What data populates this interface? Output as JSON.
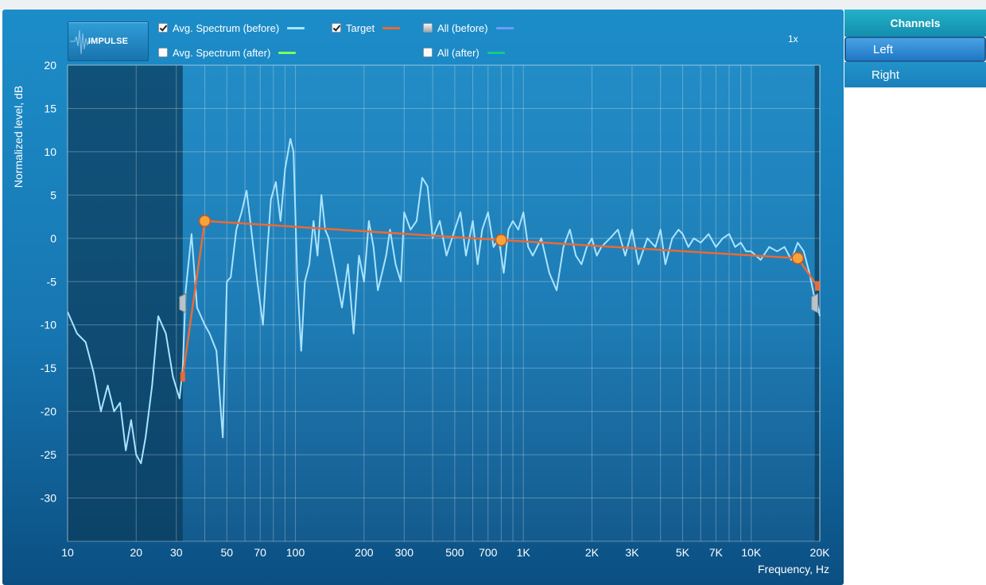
{
  "legend": {
    "impulse_label": "IMPULSE",
    "items": [
      {
        "label": "Avg. Spectrum (before)",
        "checked": true,
        "color": "#a9e4ff"
      },
      {
        "label": "Target",
        "checked": true,
        "color": "#ea6a35"
      },
      {
        "label": "All (before)",
        "checked": "partial",
        "color": "#6f9bff"
      },
      {
        "label": "Avg. Spectrum (after)",
        "checked": false,
        "color": "#7dff57"
      },
      {
        "label": "All (after)",
        "checked": false,
        "color": "#14c98c"
      }
    ],
    "zoom": "1x"
  },
  "channels": {
    "title": "Channels",
    "items": [
      {
        "label": "Left",
        "selected": true
      },
      {
        "label": "Right",
        "selected": false
      }
    ]
  },
  "colors": {
    "spectrum": "#a9e4ff",
    "target": "#ea6a35",
    "target_point": "#f7a23b",
    "shaded_region": "#0a3a5a"
  },
  "chart_data": {
    "type": "line",
    "xlabel": "Frequency, Hz",
    "ylabel": "Normalized level, dB",
    "xscale": "log",
    "xlim": [
      10,
      20000
    ],
    "ylim": [
      -35,
      20
    ],
    "grid": true,
    "x_tick_labels": [
      {
        "value": 10,
        "label": "10"
      },
      {
        "value": 20,
        "label": "20"
      },
      {
        "value": 30,
        "label": "30"
      },
      {
        "value": 50,
        "label": "50"
      },
      {
        "value": 70,
        "label": "70"
      },
      {
        "value": 100,
        "label": "100"
      },
      {
        "value": 200,
        "label": "200"
      },
      {
        "value": 300,
        "label": "300"
      },
      {
        "value": 500,
        "label": "500"
      },
      {
        "value": 700,
        "label": "700"
      },
      {
        "value": 1000,
        "label": "1K"
      },
      {
        "value": 2000,
        "label": "2K"
      },
      {
        "value": 3000,
        "label": "3K"
      },
      {
        "value": 5000,
        "label": "5K"
      },
      {
        "value": 7000,
        "label": "7K"
      },
      {
        "value": 10000,
        "label": "10K"
      },
      {
        "value": 20000,
        "label": "20K"
      }
    ],
    "y_ticks": [
      20,
      15,
      10,
      5,
      0,
      -5,
      -10,
      -15,
      -20,
      -25,
      -30
    ],
    "excluded_ranges": [
      [
        10,
        32
      ],
      [
        19000,
        20000
      ]
    ],
    "series": [
      {
        "name": "Avg. Spectrum (before)",
        "points": [
          [
            10,
            -8.5
          ],
          [
            11,
            -11
          ],
          [
            12,
            -12
          ],
          [
            13,
            -15.5
          ],
          [
            14,
            -20
          ],
          [
            15,
            -17
          ],
          [
            16,
            -20
          ],
          [
            17,
            -19
          ],
          [
            18,
            -24.5
          ],
          [
            19,
            -21
          ],
          [
            20,
            -25
          ],
          [
            21,
            -26
          ],
          [
            22,
            -23
          ],
          [
            23.5,
            -17
          ],
          [
            25,
            -9
          ],
          [
            27,
            -11
          ],
          [
            29,
            -16
          ],
          [
            31,
            -18.5
          ],
          [
            32,
            -15
          ],
          [
            33,
            -6
          ],
          [
            35,
            0.5
          ],
          [
            37,
            -8
          ],
          [
            40,
            -10
          ],
          [
            42,
            -11
          ],
          [
            45,
            -13
          ],
          [
            48,
            -23
          ],
          [
            50,
            -5
          ],
          [
            52,
            -4.5
          ],
          [
            55,
            1
          ],
          [
            58,
            3
          ],
          [
            61,
            5.5
          ],
          [
            64,
            1
          ],
          [
            68,
            -5
          ],
          [
            72,
            -10
          ],
          [
            75,
            -2
          ],
          [
            78,
            4.5
          ],
          [
            82,
            6.5
          ],
          [
            86,
            2
          ],
          [
            90,
            8
          ],
          [
            95,
            11.5
          ],
          [
            98,
            10
          ],
          [
            102,
            -5
          ],
          [
            106,
            -13
          ],
          [
            110,
            -5
          ],
          [
            115,
            -3
          ],
          [
            120,
            2
          ],
          [
            125,
            -2
          ],
          [
            130,
            5
          ],
          [
            135,
            1
          ],
          [
            140,
            0
          ],
          [
            150,
            -4
          ],
          [
            160,
            -8
          ],
          [
            170,
            -3
          ],
          [
            180,
            -11
          ],
          [
            190,
            -2
          ],
          [
            200,
            -5
          ],
          [
            210,
            2
          ],
          [
            220,
            -1
          ],
          [
            230,
            -6
          ],
          [
            240,
            -4
          ],
          [
            250,
            -2
          ],
          [
            260,
            1
          ],
          [
            275,
            -3
          ],
          [
            290,
            -5
          ],
          [
            300,
            3
          ],
          [
            320,
            1
          ],
          [
            340,
            2
          ],
          [
            360,
            7
          ],
          [
            380,
            6
          ],
          [
            400,
            0
          ],
          [
            430,
            2
          ],
          [
            460,
            -2
          ],
          [
            500,
            1
          ],
          [
            530,
            3
          ],
          [
            560,
            -2
          ],
          [
            600,
            2
          ],
          [
            630,
            -3
          ],
          [
            660,
            1
          ],
          [
            700,
            3
          ],
          [
            740,
            -1
          ],
          [
            780,
            0
          ],
          [
            820,
            -4
          ],
          [
            860,
            1
          ],
          [
            900,
            2
          ],
          [
            950,
            1
          ],
          [
            1000,
            3
          ],
          [
            1050,
            -1
          ],
          [
            1100,
            -2
          ],
          [
            1200,
            0
          ],
          [
            1300,
            -4
          ],
          [
            1400,
            -6
          ],
          [
            1500,
            -1
          ],
          [
            1600,
            1
          ],
          [
            1700,
            -2
          ],
          [
            1800,
            -3
          ],
          [
            1900,
            -1
          ],
          [
            2000,
            0
          ],
          [
            2100,
            -2
          ],
          [
            2200,
            -1
          ],
          [
            2400,
            0
          ],
          [
            2600,
            1
          ],
          [
            2800,
            -2
          ],
          [
            3000,
            1
          ],
          [
            3200,
            -3
          ],
          [
            3500,
            0
          ],
          [
            3800,
            -1
          ],
          [
            4000,
            1
          ],
          [
            4200,
            -3
          ],
          [
            4500,
            0
          ],
          [
            4800,
            1
          ],
          [
            5000,
            0.5
          ],
          [
            5300,
            -1
          ],
          [
            5600,
            0
          ],
          [
            6000,
            -0.5
          ],
          [
            6500,
            0.5
          ],
          [
            7000,
            -1
          ],
          [
            7500,
            0
          ],
          [
            8000,
            0.5
          ],
          [
            8500,
            -1
          ],
          [
            9000,
            -0.5
          ],
          [
            9500,
            -1.5
          ],
          [
            10000,
            -1.5
          ],
          [
            11000,
            -2.5
          ],
          [
            12000,
            -1
          ],
          [
            13000,
            -1.5
          ],
          [
            14000,
            -1
          ],
          [
            15000,
            -2.5
          ],
          [
            16000,
            -0.5
          ],
          [
            17000,
            -1.5
          ],
          [
            18000,
            -4
          ],
          [
            19000,
            -7
          ],
          [
            19500,
            -7.5
          ],
          [
            20000,
            -9
          ]
        ]
      },
      {
        "name": "Target",
        "points": [
          [
            32,
            -16
          ],
          [
            40,
            2
          ],
          [
            800,
            -0.2
          ],
          [
            16000,
            -2.3
          ],
          [
            19500,
            -5.5
          ]
        ]
      }
    ]
  }
}
